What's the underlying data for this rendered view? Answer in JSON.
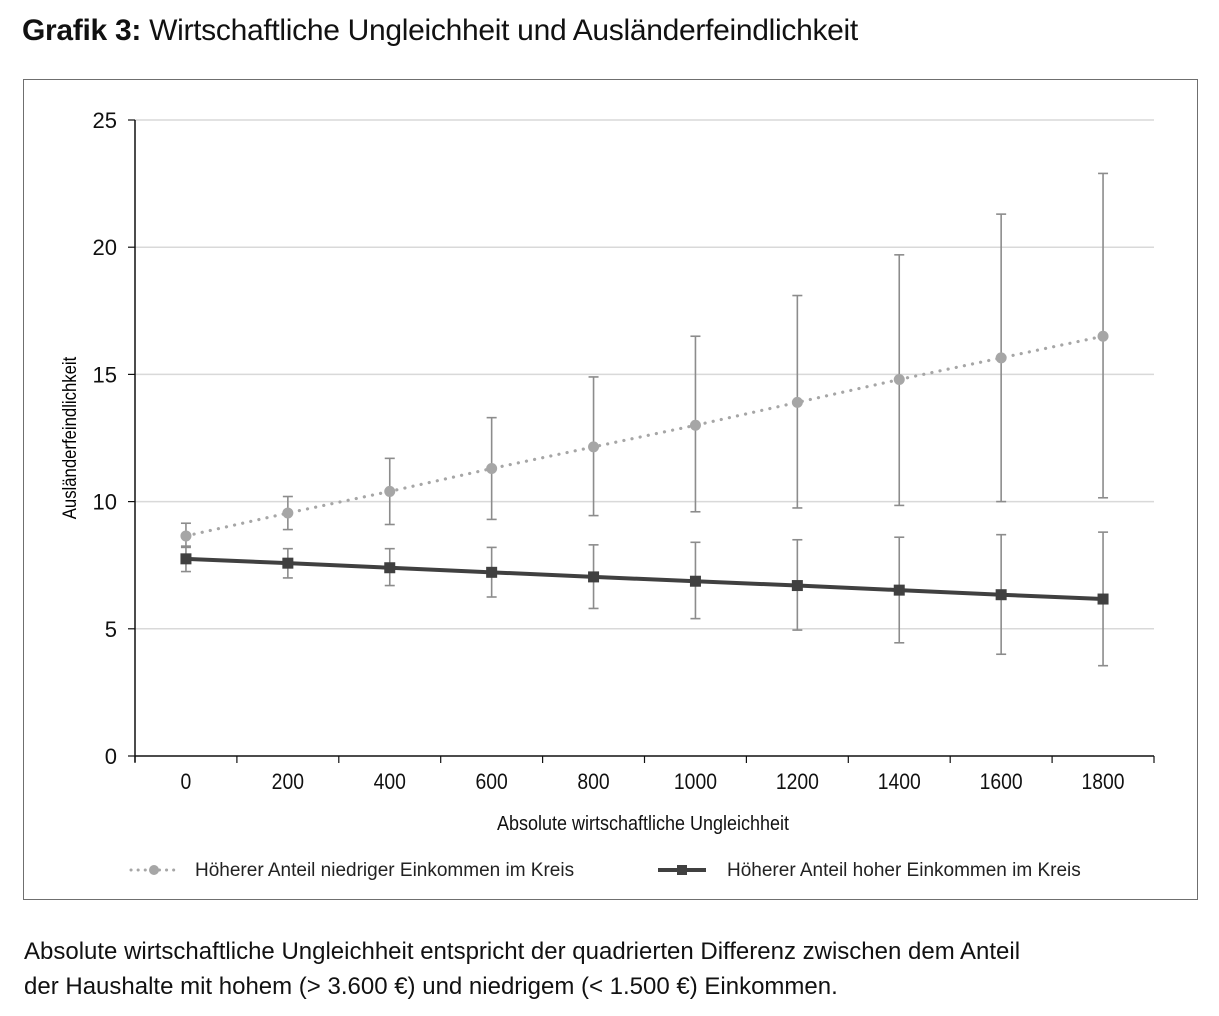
{
  "title": {
    "prefix": "Grafik 3:",
    "text": "Wirtschaftliche Ungleichheit und Ausländerfeindlichkeit"
  },
  "caption": {
    "line1": "Absolute wirtschaftliche Ungleichheit entspricht der quadrierten Differenz zwischen dem Anteil",
    "line2": "der Haushalte mit hohem (> 3.600 €) und niedrigem (< 1.500 €) Einkommen."
  },
  "chart_data": {
    "type": "line",
    "title": "Wirtschaftliche Ungleichheit und Ausländerfeindlichkeit",
    "xlabel": "Absolute wirtschaftliche Ungleichheit",
    "ylabel": "Ausländerfeindlichkeit",
    "x": [
      0,
      200,
      400,
      600,
      800,
      1000,
      1200,
      1400,
      1600,
      1800
    ],
    "x_ticks": [
      "0",
      "200",
      "400",
      "600",
      "800",
      "1000",
      "1200",
      "1400",
      "1600",
      "1800"
    ],
    "y_ticks": [
      "0",
      "5",
      "10",
      "15",
      "20",
      "25"
    ],
    "ylim": [
      0,
      25
    ],
    "grid": "horizontal",
    "legend_position": "bottom",
    "series": [
      {
        "name": "Höherer Anteil niedriger Einkommen im Kreis",
        "style": "dotted-circle",
        "color": "#a6a6a6",
        "values": [
          8.65,
          9.55,
          10.4,
          11.3,
          12.15,
          13.0,
          13.9,
          14.8,
          15.65,
          16.5
        ],
        "ci_lower": [
          8.2,
          8.9,
          9.1,
          9.3,
          9.45,
          9.6,
          9.75,
          9.85,
          10.0,
          10.15
        ],
        "ci_upper": [
          9.15,
          10.2,
          11.7,
          13.3,
          14.9,
          16.5,
          18.1,
          19.7,
          21.3,
          22.9
        ]
      },
      {
        "name": "Höherer Anteil hoher Einkommen im Kreis",
        "style": "solid-square",
        "color": "#404040",
        "values": [
          7.75,
          7.58,
          7.4,
          7.22,
          7.04,
          6.87,
          6.7,
          6.52,
          6.34,
          6.17
        ],
        "ci_lower": [
          7.25,
          7.0,
          6.7,
          6.25,
          5.8,
          5.4,
          4.95,
          4.45,
          4.0,
          3.55
        ],
        "ci_upper": [
          8.25,
          8.15,
          8.15,
          8.2,
          8.3,
          8.4,
          8.5,
          8.6,
          8.7,
          8.8
        ]
      }
    ]
  }
}
